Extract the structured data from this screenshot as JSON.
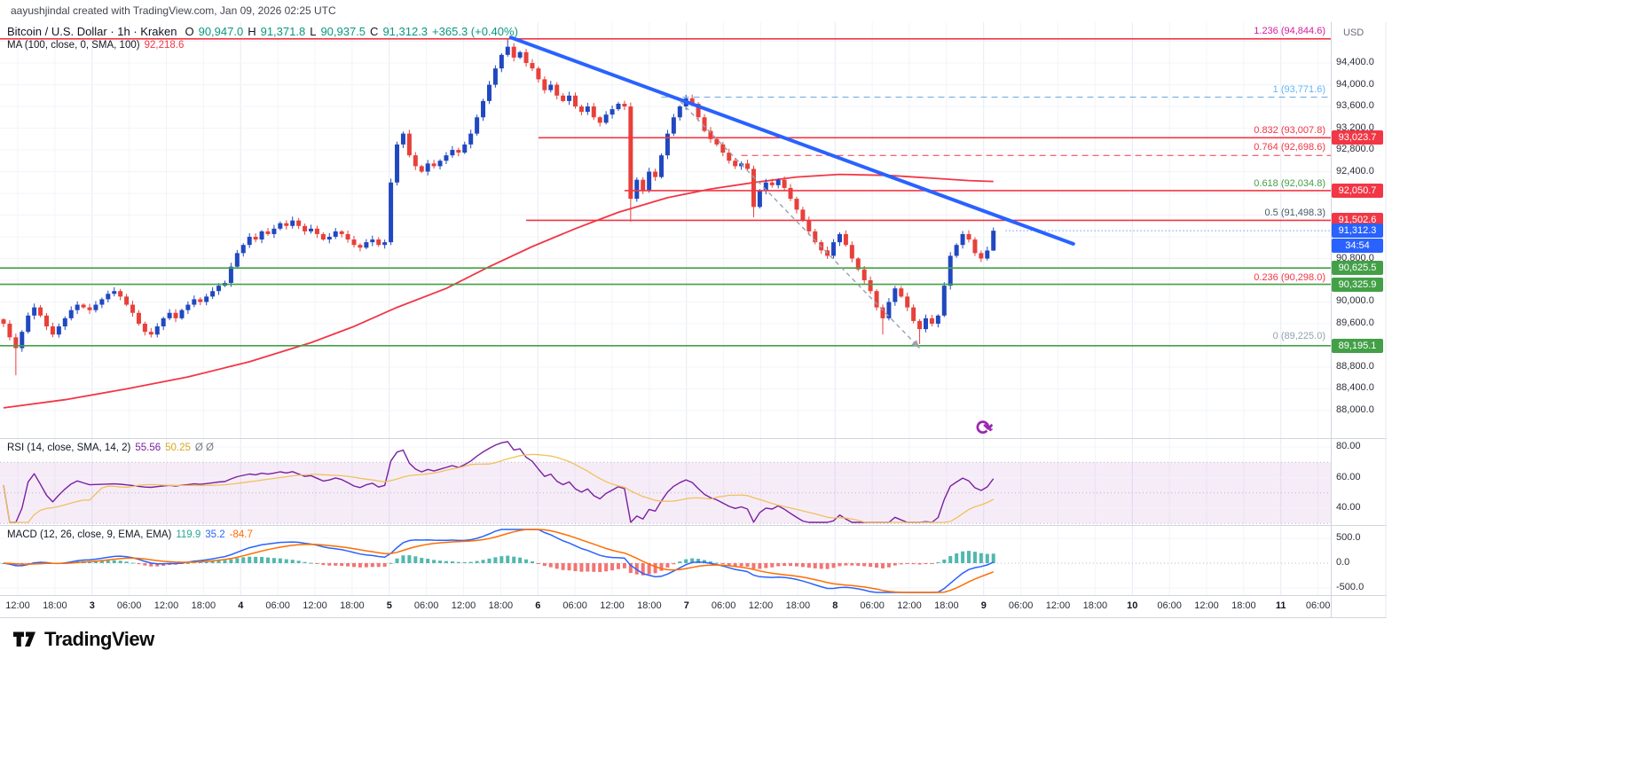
{
  "attribution": "aayushjindal created with TradingView.com, Jan 09, 2026 02:25 UTC",
  "legend": {
    "title": "Bitcoin / U.S. Dollar · 1h · Kraken",
    "o_label": "O",
    "o": "90,947.0",
    "h_label": "H",
    "h": "91,371.8",
    "l_label": "L",
    "l": "90,937.5",
    "c_label": "C",
    "c": "91,312.3",
    "change": "+365.3 (+0.40%)",
    "ma_name": "MA (100, close, 0, SMA, 100)",
    "ma_value": "92,218.6",
    "rsi_name": "RSI (14, close, SMA, 14, 2)",
    "rsi_value": "55.56",
    "rsi_smooth": "50.25",
    "rsi_extra": "Ø Ø",
    "macd_name": "MACD (12, 26, close, 9, EMA, EMA)",
    "macd_hist": "119.9",
    "macd_value": "35.2",
    "macd_signal": "-84.7"
  },
  "axis": {
    "currency": "USD",
    "price_labels": [
      {
        "text": "94,400.0",
        "price": 94400
      },
      {
        "text": "94,000.0",
        "price": 94000
      },
      {
        "text": "93,600.0",
        "price": 93600
      },
      {
        "text": "93,200.0",
        "price": 93200
      },
      {
        "text": "92,800.0",
        "price": 92800
      },
      {
        "text": "92,400.0",
        "price": 92400
      },
      {
        "text": "90,800.0",
        "price": 90800
      },
      {
        "text": "90,000.0",
        "price": 90000
      },
      {
        "text": "89,600.0",
        "price": 89600
      },
      {
        "text": "88,800.0",
        "price": 88800
      },
      {
        "text": "88,400.0",
        "price": 88400
      },
      {
        "text": "88,000.0",
        "price": 88000
      }
    ],
    "rsi_labels": [
      {
        "text": "80.00",
        "v": 80
      },
      {
        "text": "60.00",
        "v": 60
      },
      {
        "text": "40.00",
        "v": 40
      }
    ],
    "macd_labels": [
      {
        "text": "500.0",
        "v": 500
      },
      {
        "text": "0.0",
        "v": 0
      },
      {
        "text": "-500.0",
        "v": -500
      }
    ],
    "time_labels": [
      "12:00",
      "18:00",
      "3",
      "06:00",
      "12:00",
      "18:00",
      "4",
      "06:00",
      "12:00",
      "18:00",
      "5",
      "06:00",
      "12:00",
      "18:00",
      "6",
      "06:00",
      "12:00",
      "18:00",
      "7",
      "06:00",
      "12:00",
      "18:00",
      "8",
      "06:00",
      "12:00",
      "18:00",
      "9",
      "06:00",
      "12:00",
      "18:00",
      "10",
      "06:00",
      "12:00",
      "18:00",
      "11",
      "06:00"
    ],
    "last_price": {
      "text": "91,312.3",
      "price": 91312.3,
      "countdown": "34:54"
    }
  },
  "footer": {
    "logo_text": "TradingView"
  },
  "chart_data": {
    "type": "candlestick",
    "title": "Bitcoin / U.S. Dollar, 1h, Kraken",
    "ylabel": "USD",
    "y_axis": {
      "min": 88000,
      "max": 94400,
      "step": 400
    },
    "x_axis_days": [
      "3",
      "4",
      "5",
      "6",
      "7",
      "8",
      "9",
      "10",
      "11"
    ],
    "last_candle": {
      "o": 90947.0,
      "h": 91371.8,
      "l": 90937.5,
      "c": 91312.3,
      "change": "+365.3 (+0.40%)"
    },
    "closes": [
      89600,
      89350,
      89150,
      89450,
      89750,
      89900,
      89750,
      89550,
      89400,
      89550,
      89700,
      89850,
      89950,
      89900,
      89850,
      89950,
      90050,
      90150,
      90200,
      90100,
      89950,
      89800,
      89600,
      89450,
      89400,
      89550,
      89700,
      89800,
      89700,
      89850,
      89950,
      90050,
      90000,
      90100,
      90200,
      90300,
      90350,
      90650,
      90900,
      91050,
      91200,
      91150,
      91300,
      91250,
      91350,
      91450,
      91400,
      91500,
      91400,
      91300,
      91350,
      91250,
      91150,
      91200,
      91300,
      91250,
      91150,
      91050,
      91000,
      91100,
      91150,
      91050,
      91100,
      92200,
      92900,
      93100,
      92700,
      92500,
      92400,
      92550,
      92500,
      92600,
      92700,
      92800,
      92750,
      92900,
      93100,
      93400,
      93700,
      94000,
      94300,
      94550,
      94700,
      94500,
      94600,
      94400,
      94300,
      94100,
      93900,
      94000,
      93800,
      93700,
      93800,
      93600,
      93500,
      93600,
      93400,
      93300,
      93450,
      93550,
      93650,
      93600,
      91900,
      92250,
      92050,
      92400,
      92300,
      92700,
      93100,
      93400,
      93600,
      93750,
      93650,
      93400,
      93150,
      93000,
      92900,
      92750,
      92600,
      92500,
      92550,
      92450,
      91750,
      92050,
      92200,
      92150,
      92250,
      92100,
      91900,
      91700,
      91500,
      91300,
      91100,
      90950,
      90850,
      91100,
      91250,
      91050,
      90800,
      90600,
      90400,
      90200,
      89900,
      89700,
      90000,
      90250,
      90100,
      89900,
      89650,
      89500,
      89700,
      89600,
      89750,
      90300,
      90850,
      91050,
      91250,
      91150,
      90900,
      90800,
      90947,
      91312.3
    ],
    "wick_overrides": {
      "2": {
        "l": 88650
      },
      "82": {
        "h": 94844.6
      },
      "102": {
        "l": 91480
      },
      "122": {
        "l": 91560
      },
      "143": {
        "l": 89400
      },
      "149": {
        "l": 89225
      },
      "161": {
        "h": 91371.8,
        "l": 90937.5
      }
    },
    "ma100_points": [
      [
        0,
        88050
      ],
      [
        10,
        88200
      ],
      [
        20,
        88400
      ],
      [
        30,
        88620
      ],
      [
        40,
        88900
      ],
      [
        50,
        89250
      ],
      [
        57,
        89550
      ],
      [
        64,
        89900
      ],
      [
        72,
        90250
      ],
      [
        79,
        90650
      ],
      [
        86,
        91020
      ],
      [
        93,
        91350
      ],
      [
        100,
        91650
      ],
      [
        108,
        91920
      ],
      [
        115,
        92080
      ],
      [
        122,
        92200
      ],
      [
        129,
        92300
      ],
      [
        136,
        92350
      ],
      [
        144,
        92330
      ],
      [
        151,
        92280
      ],
      [
        157,
        92235
      ],
      [
        161,
        92218.6
      ]
    ],
    "trendline": {
      "t1": 82.5,
      "p1": 94870,
      "t2": 174,
      "p2": 91070
    },
    "arrow": {
      "t1": 110,
      "p1": 93700,
      "t2": 149,
      "p2": 89150
    },
    "lines": [
      {
        "price": 94844.6,
        "color": "#f23645",
        "style": "solid",
        "from_t": -1,
        "width": 1.6,
        "badge": null
      },
      {
        "price": 93771.6,
        "color": "#6fa8dc",
        "style": "dashed",
        "from_t": 107,
        "width": 1,
        "badge": null
      },
      {
        "price": 93023.7,
        "color": "#f23645",
        "style": "solid",
        "from_t": 87,
        "width": 1.6,
        "badge": "93,023.7"
      },
      {
        "price": 92698.6,
        "color": "#f23645",
        "style": "dashed",
        "from_t": 120,
        "width": 1,
        "badge": null
      },
      {
        "price": 92050.7,
        "color": "#f23645",
        "style": "solid",
        "from_t": 101,
        "width": 1.6,
        "badge": "92,050.7"
      },
      {
        "price": 91502.6,
        "color": "#f23645",
        "style": "solid",
        "from_t": 85,
        "width": 1.6,
        "badge": "91,502.6"
      },
      {
        "price": 90625.5,
        "color": "#43a047",
        "style": "solid",
        "from_t": -1,
        "width": 1.6,
        "badge": "90,625.5"
      },
      {
        "price": 90325.9,
        "color": "#43a047",
        "style": "solid",
        "from_t": -1,
        "width": 1.6,
        "badge": "90,325.9"
      },
      {
        "price": 89195.1,
        "color": "#43a047",
        "style": "solid",
        "from_t": -1,
        "width": 1.6,
        "badge": "89,195.1"
      }
    ],
    "fib_labels": [
      {
        "text": "1.236 (94,844.6)",
        "price": 94844.6,
        "color": "#d81b9d"
      },
      {
        "text": "1 (93,771.6)",
        "price": 93771.6,
        "color": "#64b5f6"
      },
      {
        "text": "0.832 (93,007.8)",
        "price": 93007.8,
        "color": "#f23645"
      },
      {
        "text": "0.764 (92,698.6)",
        "price": 92698.6,
        "color": "#f23645"
      },
      {
        "text": "0.618 (92,034.8)",
        "price": 92034.8,
        "color": "#43a047"
      },
      {
        "text": "0.5 (91,498.3)",
        "price": 91498.3,
        "color": "#455a64"
      },
      {
        "text": "0.236 (90,298.0)",
        "price": 90298.0,
        "color": "#f23645"
      },
      {
        "text": "0 (89,225.0)",
        "price": 89225.0,
        "color": "#90a4ae"
      }
    ],
    "rsi": {
      "length": 14,
      "smoothing": "SMA 14",
      "last": 55.56,
      "smooth_last": 50.25,
      "band": [
        30,
        70
      ]
    },
    "macd": {
      "fast": 12,
      "slow": 26,
      "signal": 9,
      "last_hist": 119.9,
      "last_macd": 35.2,
      "last_signal": -84.7
    },
    "colors": {
      "up": "#2148c0",
      "down": "#e8403a",
      "ma": "#f23645",
      "trend": "#2962ff",
      "level_red": "#f23645",
      "level_green": "#43a047",
      "badge_blue": "#2962ff",
      "rsi": "#7b1fa2",
      "rsi_smooth": "#f0c15c",
      "rsi_band": "rgba(156,39,176,0.09)",
      "macd_line": "#2962ff",
      "macd_signal": "#ff6d00",
      "hist_pos": "#26a69a",
      "hist_neg": "#ef5350"
    }
  }
}
